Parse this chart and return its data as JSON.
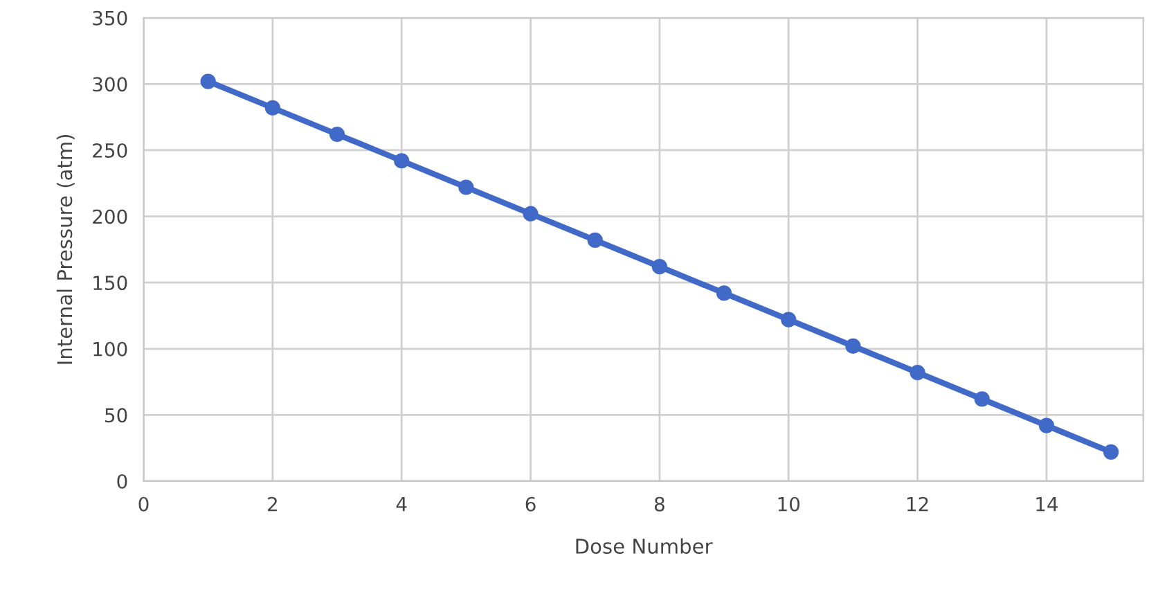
{
  "chart_data": {
    "type": "line",
    "xlabel": "Dose Number",
    "ylabel": "Internal Pressure (atm)",
    "x": [
      1,
      2,
      3,
      4,
      5,
      6,
      7,
      8,
      9,
      10,
      11,
      12,
      13,
      14,
      15
    ],
    "series": [
      {
        "color": "#4169c8",
        "values": [
          302,
          282,
          262,
          242,
          222,
          202,
          182,
          162,
          142,
          122,
          102,
          82,
          62,
          42,
          22
        ]
      }
    ],
    "xlim": [
      0,
      15.5
    ],
    "xticks": [
      0,
      2,
      4,
      6,
      8,
      10,
      12,
      14
    ],
    "ylim": [
      0,
      350
    ],
    "yticks": [
      0,
      50,
      100,
      150,
      200,
      250,
      300,
      350
    ],
    "grid": true,
    "marker": "circle",
    "line_style": "solid"
  }
}
